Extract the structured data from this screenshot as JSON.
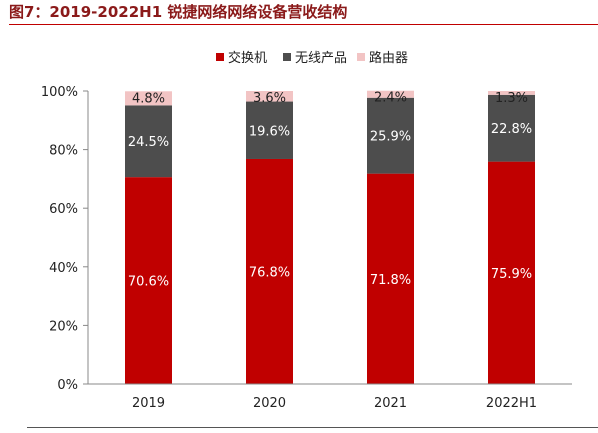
{
  "figure_title": "图7：2019-2022H1 锐捷网络网络设备营收结构",
  "chart_data": {
    "type": "bar",
    "stacked": true,
    "categories": [
      "2019",
      "2020",
      "2021",
      "2022H1"
    ],
    "series": [
      {
        "name": "交换机",
        "color": "#c00000",
        "label_color": "#ffffff",
        "values": [
          70.6,
          76.8,
          71.8,
          75.9
        ],
        "labels": [
          "70.6%",
          "76.8%",
          "71.8%",
          "75.9%"
        ]
      },
      {
        "name": "无线产品",
        "color": "#4d4d4d",
        "label_color": "#ffffff",
        "values": [
          24.5,
          19.6,
          25.9,
          22.8
        ],
        "labels": [
          "24.5%",
          "19.6%",
          "25.9%",
          "22.8%"
        ]
      },
      {
        "name": "路由器",
        "color": "#f2c4c4",
        "label_color": "#222222",
        "values": [
          4.8,
          3.6,
          2.4,
          1.3
        ],
        "labels": [
          "4.8%",
          "3.6%",
          "2.4%",
          "1.3%"
        ]
      }
    ],
    "ylim": [
      0,
      100
    ],
    "yticks": [
      0,
      20,
      40,
      60,
      80,
      100
    ],
    "ytick_labels": [
      "0%",
      "20%",
      "40%",
      "60%",
      "80%",
      "100%"
    ],
    "legend_position": "top-center",
    "grid": false
  }
}
